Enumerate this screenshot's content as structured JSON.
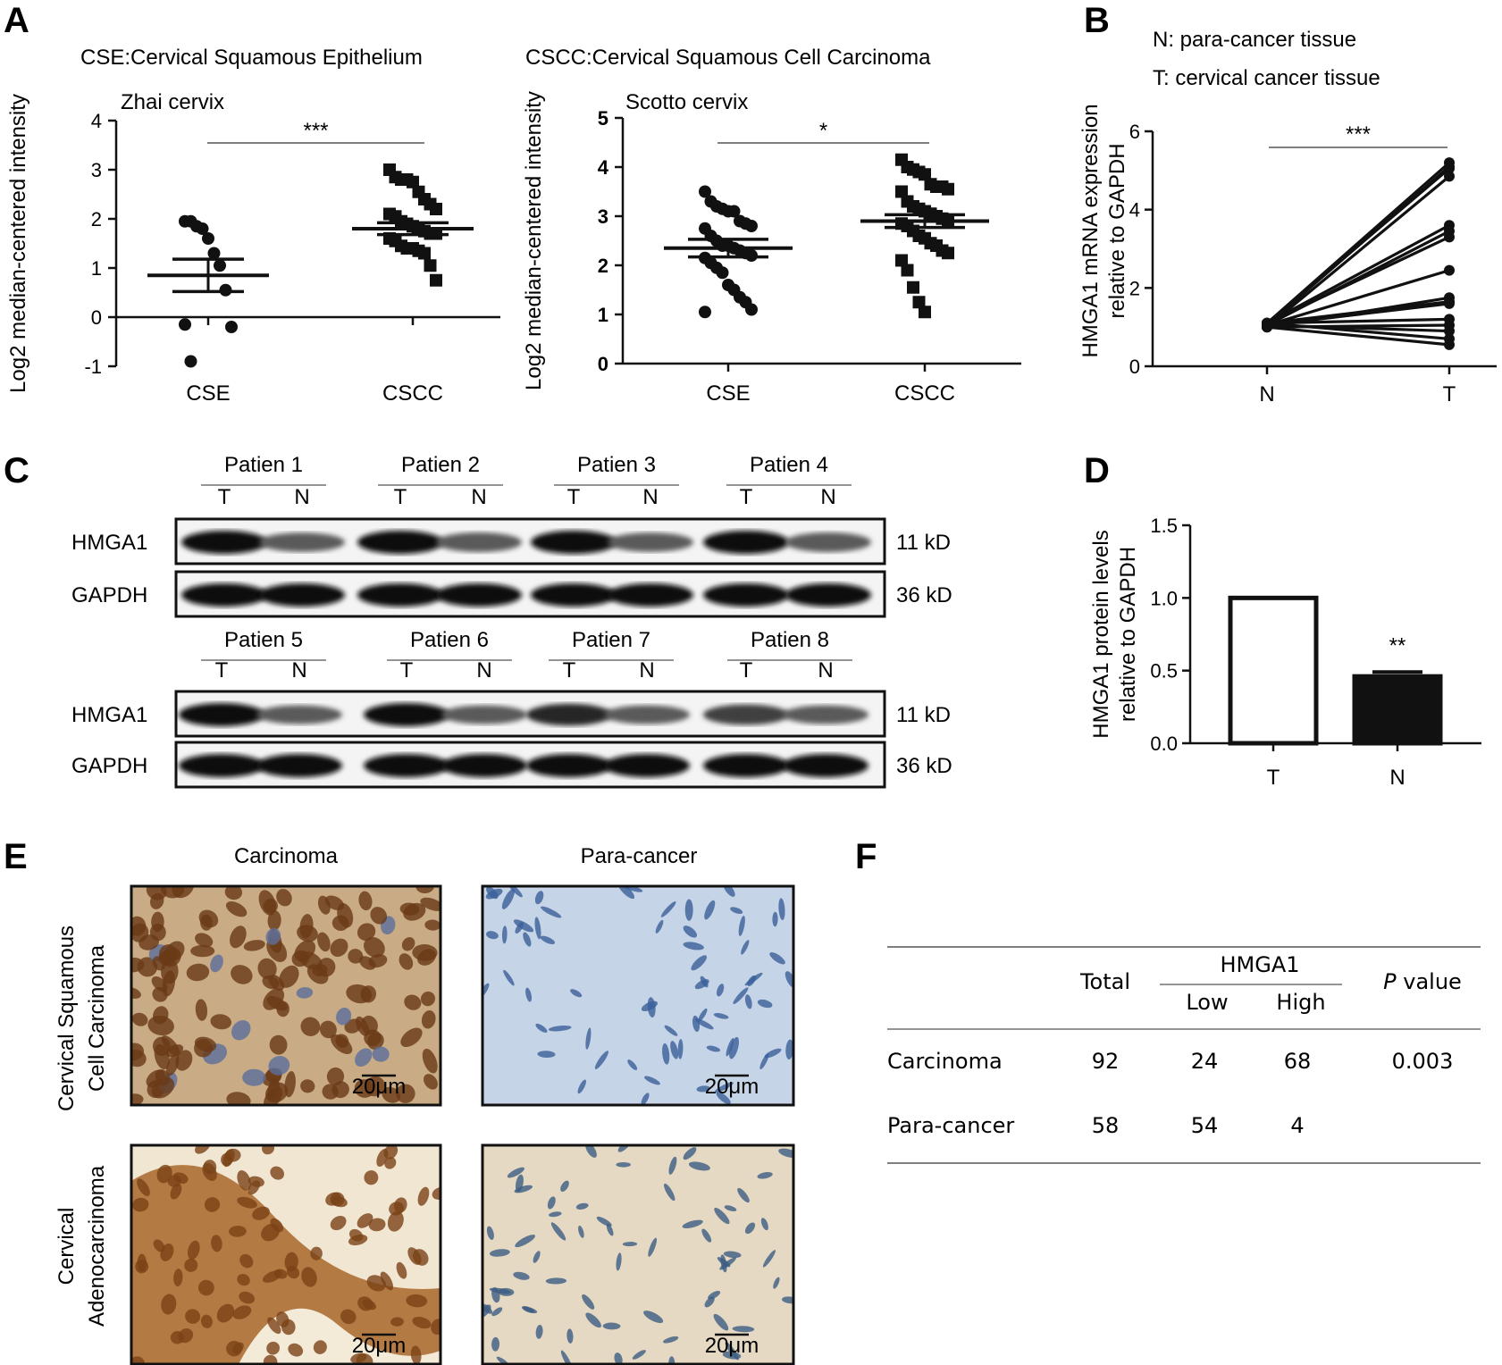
{
  "panels": {
    "A": "A",
    "B": "B",
    "C": "C",
    "D": "D",
    "E": "E",
    "F": "F"
  },
  "panelA": {
    "left_title": "CSE:Cervical Squamous Epithelium",
    "right_title": "CSCC:Cervical Squamous Cell Carcinoma"
  },
  "panelB": {
    "legend_n": "N: para-cancer tissue",
    "legend_t": "T: cervical cancer tissue"
  },
  "panelC": {
    "row1_patients": [
      "Patien 1",
      "Patien 2",
      "Patien 3",
      "Patien 4"
    ],
    "row2_patients": [
      "Patien 5",
      "Patien 6",
      "Patien 7",
      "Patien 8"
    ],
    "lane_t": "T",
    "lane_n": "N",
    "protein_hmga1": "HMGA1",
    "protein_gapdh": "GAPDH",
    "kd_hmga1": "11 kD",
    "kd_gapdh": "36 kD"
  },
  "panelE": {
    "col_carcinoma": "Carcinoma",
    "col_para": "Para-cancer",
    "row1_label_line1": "Cervical Squamous",
    "row1_label_line2": "Cell Carcinoma",
    "row2_label_line1": "Cervical",
    "row2_label_line2": "Adenocarcinoma",
    "scale": "20μm"
  },
  "panelF": {
    "h_total": "Total",
    "h_hmga1": "HMGA1",
    "h_low": "Low",
    "h_high": "High",
    "h_p_italic": "P",
    "h_p_rest": " value",
    "rows": [
      {
        "name": "Carcinoma",
        "total": "92",
        "low": "24",
        "high": "68",
        "p": "0.003"
      },
      {
        "name": "Para-cancer",
        "total": "58",
        "low": "54",
        "high": "4",
        "p": ""
      }
    ]
  },
  "chart_data": [
    {
      "id": "zhai",
      "type": "scatter",
      "title": "Zhai cervix",
      "ylabel": "Log2 median-centered intensity",
      "categories": [
        "CSE",
        "CSCC"
      ],
      "ylim": [
        -1,
        4
      ],
      "yticks": [
        -1,
        0,
        1,
        2,
        3,
        4
      ],
      "significance": "***",
      "series": [
        {
          "name": "CSE",
          "mean": 0.85,
          "sem": 0.33,
          "values": [
            1.95,
            1.95,
            1.85,
            1.8,
            1.6,
            1.3,
            1.05,
            0.55,
            -0.2,
            -0.15,
            -0.9
          ]
        },
        {
          "name": "CSCC",
          "mean": 1.8,
          "sem": 0.12,
          "values": [
            3.0,
            2.85,
            2.8,
            2.8,
            2.75,
            2.55,
            2.4,
            2.3,
            2.2,
            2.1,
            2.05,
            1.95,
            1.9,
            1.85,
            1.8,
            1.75,
            1.7,
            1.7,
            1.6,
            1.55,
            1.45,
            1.4,
            1.4,
            1.35,
            1.3,
            1.05,
            0.75
          ]
        }
      ]
    },
    {
      "id": "scotto",
      "type": "scatter",
      "title": "Scotto cervix",
      "ylabel": "Log2 median-centered intensity",
      "categories": [
        "CSE",
        "CSCC"
      ],
      "ylim": [
        0,
        5
      ],
      "yticks": [
        0,
        1,
        2,
        3,
        4,
        5
      ],
      "significance": "*",
      "series": [
        {
          "name": "CSE",
          "mean": 2.35,
          "sem": 0.18,
          "values": [
            3.5,
            3.3,
            3.2,
            3.15,
            3.1,
            3.1,
            2.9,
            2.85,
            2.8,
            2.75,
            2.6,
            2.5,
            2.4,
            2.4,
            2.35,
            2.3,
            2.25,
            2.2,
            2.15,
            2.05,
            1.95,
            1.85,
            1.6,
            1.5,
            1.35,
            1.25,
            1.1,
            1.05
          ]
        },
        {
          "name": "CSCC",
          "mean": 2.9,
          "sem": 0.13,
          "values": [
            4.15,
            4.0,
            3.95,
            3.9,
            3.85,
            3.65,
            3.6,
            3.6,
            3.55,
            3.5,
            3.3,
            3.2,
            3.15,
            3.1,
            3.05,
            3.0,
            2.95,
            2.9,
            2.85,
            2.8,
            2.7,
            2.6,
            2.55,
            2.45,
            2.4,
            2.3,
            2.25,
            2.1,
            1.9,
            1.55,
            1.25,
            1.05
          ]
        }
      ]
    },
    {
      "id": "mrna",
      "type": "line",
      "ylabel": "HMGA1 mRNA expression relative to GAPDH",
      "categories": [
        "N",
        "T"
      ],
      "ylim": [
        0,
        6
      ],
      "yticks": [
        0,
        2,
        4,
        6
      ],
      "significance": "***",
      "pairs": [
        [
          1.1,
          5.2
        ],
        [
          1.05,
          5.1
        ],
        [
          1.1,
          5.05
        ],
        [
          1.0,
          4.85
        ],
        [
          1.1,
          3.6
        ],
        [
          1.05,
          3.45
        ],
        [
          1.1,
          3.3
        ],
        [
          1.05,
          2.45
        ],
        [
          1.0,
          1.75
        ],
        [
          1.1,
          1.65
        ],
        [
          1.05,
          1.6
        ],
        [
          1.1,
          1.2
        ],
        [
          1.0,
          1.05
        ],
        [
          1.05,
          0.9
        ],
        [
          1.1,
          0.7
        ],
        [
          1.0,
          0.55
        ]
      ]
    },
    {
      "id": "protein",
      "type": "bar",
      "ylabel": "HMGA1 protein levels relative to GAPDH",
      "categories": [
        "T",
        "N"
      ],
      "values": [
        1.0,
        0.46
      ],
      "errors": [
        0,
        0.03
      ],
      "ylim": [
        0,
        1.5
      ],
      "yticks": [
        "0.0",
        "0.5",
        "1.0",
        "1.5"
      ],
      "significance": "**"
    }
  ]
}
